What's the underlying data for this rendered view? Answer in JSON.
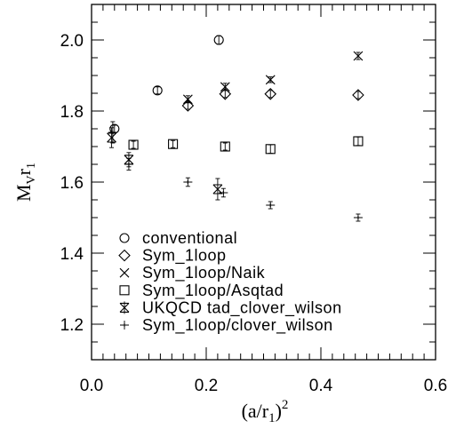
{
  "chart_data": {
    "type": "scatter",
    "title": "",
    "xlabel_main": "(a/r",
    "xlabel_sub": "1",
    "xlabel_close": ")",
    "xlabel_sup": "2",
    "ylabel_main": "M",
    "ylabel_sub1": "V",
    "ylabel_mid": "r",
    "ylabel_sub2": "1",
    "xlim": [
      0.0,
      0.6
    ],
    "ylim": [
      1.1,
      2.1
    ],
    "xticks": [
      {
        "value": 0.0,
        "label": "0.0"
      },
      {
        "value": 0.2,
        "label": "0.2"
      },
      {
        "value": 0.4,
        "label": "0.4"
      },
      {
        "value": 0.6,
        "label": "0.6"
      }
    ],
    "yticks": [
      {
        "value": 1.2,
        "label": "1.2"
      },
      {
        "value": 1.4,
        "label": "1.4"
      },
      {
        "value": 1.6,
        "label": "1.6"
      },
      {
        "value": 1.8,
        "label": "1.8"
      },
      {
        "value": 2.0,
        "label": "2.0"
      }
    ],
    "grid": false,
    "legend_position": "bottom-left",
    "series": [
      {
        "name": "conventional",
        "marker": "circle",
        "points": [
          {
            "x": 0.04,
            "y": 1.75,
            "err": 0.01
          },
          {
            "x": 0.115,
            "y": 1.858,
            "err": 0.01
          },
          {
            "x": 0.222,
            "y": 2.0,
            "err": 0.012
          }
        ]
      },
      {
        "name": "Sym_1loop",
        "marker": "diamond",
        "points": [
          {
            "x": 0.168,
            "y": 1.815,
            "err": 0.01
          },
          {
            "x": 0.233,
            "y": 1.848,
            "err": 0.01
          },
          {
            "x": 0.312,
            "y": 1.848,
            "err": 0.01
          },
          {
            "x": 0.465,
            "y": 1.845,
            "err": 0.01
          }
        ]
      },
      {
        "name": "Sym_1loop/Naik",
        "marker": "x",
        "points": [
          {
            "x": 0.168,
            "y": 1.833,
            "err": 0.01
          },
          {
            "x": 0.233,
            "y": 1.868,
            "err": 0.01
          },
          {
            "x": 0.312,
            "y": 1.888,
            "err": 0.008
          },
          {
            "x": 0.465,
            "y": 1.955,
            "err": 0.01
          }
        ]
      },
      {
        "name": "Sym_1loop/Asqtad",
        "marker": "square",
        "points": [
          {
            "x": 0.073,
            "y": 1.705,
            "err": 0.01
          },
          {
            "x": 0.142,
            "y": 1.707,
            "err": 0.01
          },
          {
            "x": 0.233,
            "y": 1.7,
            "err": 0.01
          },
          {
            "x": 0.312,
            "y": 1.693,
            "err": 0.012
          },
          {
            "x": 0.465,
            "y": 1.715,
            "err": 0.012
          }
        ]
      },
      {
        "name": "UKQCD tad_clover_wilson",
        "marker": "squarex",
        "points": [
          {
            "x": 0.035,
            "y": 1.725,
            "err": 0.028
          },
          {
            "x": 0.065,
            "y": 1.663,
            "err": 0.02
          },
          {
            "x": 0.22,
            "y": 1.58,
            "err": 0.03
          }
        ]
      },
      {
        "name": "Sym_1loop/clover_wilson",
        "marker": "plus",
        "points": [
          {
            "x": 0.037,
            "y": 1.74,
            "err": 0.03
          },
          {
            "x": 0.065,
            "y": 1.65,
            "err": 0.016
          },
          {
            "x": 0.168,
            "y": 1.6,
            "err": 0.012
          },
          {
            "x": 0.23,
            "y": 1.57,
            "err": 0.012
          },
          {
            "x": 0.312,
            "y": 1.535,
            "err": 0.01
          },
          {
            "x": 0.465,
            "y": 1.5,
            "err": 0.01
          }
        ]
      }
    ]
  }
}
